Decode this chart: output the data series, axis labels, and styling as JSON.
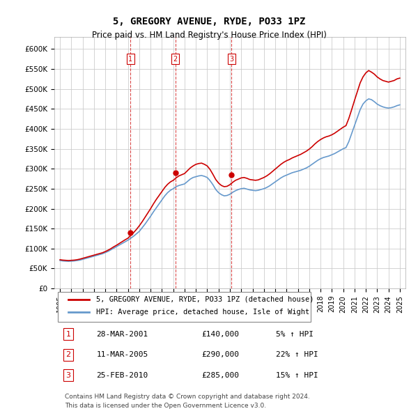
{
  "title": "5, GREGORY AVENUE, RYDE, PO33 1PZ",
  "subtitle": "Price paid vs. HM Land Registry's House Price Index (HPI)",
  "ylabel": "",
  "xlabel": "",
  "ylim": [
    0,
    630000
  ],
  "yticks": [
    0,
    50000,
    100000,
    150000,
    200000,
    250000,
    300000,
    350000,
    400000,
    450000,
    500000,
    550000,
    600000
  ],
  "ytick_labels": [
    "£0",
    "£50K",
    "£100K",
    "£150K",
    "£200K",
    "£250K",
    "£300K",
    "£350K",
    "£400K",
    "£450K",
    "£500K",
    "£550K",
    "£600K"
  ],
  "xlim": [
    1994.5,
    2025.5
  ],
  "legend_line1": "5, GREGORY AVENUE, RYDE, PO33 1PZ (detached house)",
  "legend_line2": "HPI: Average price, detached house, Isle of Wight",
  "sales": [
    {
      "label": "1",
      "date": "28-MAR-2001",
      "price": 140000,
      "pct": "5%",
      "direction": "↑",
      "year": 2001.22
    },
    {
      "label": "2",
      "date": "11-MAR-2005",
      "price": 290000,
      "pct": "22%",
      "direction": "↑",
      "year": 2005.19
    },
    {
      "label": "3",
      "date": "25-FEB-2010",
      "price": 285000,
      "pct": "15%",
      "direction": "↑",
      "year": 2010.14
    }
  ],
  "footnote1": "Contains HM Land Registry data © Crown copyright and database right 2024.",
  "footnote2": "This data is licensed under the Open Government Licence v3.0.",
  "red_color": "#cc0000",
  "blue_color": "#6699cc",
  "grid_color": "#cccccc",
  "background_color": "#ffffff",
  "hpi_data_x": [
    1995.0,
    1995.25,
    1995.5,
    1995.75,
    1996.0,
    1996.25,
    1996.5,
    1996.75,
    1997.0,
    1997.25,
    1997.5,
    1997.75,
    1998.0,
    1998.25,
    1998.5,
    1998.75,
    1999.0,
    1999.25,
    1999.5,
    1999.75,
    2000.0,
    2000.25,
    2000.5,
    2000.75,
    2001.0,
    2001.25,
    2001.5,
    2001.75,
    2002.0,
    2002.25,
    2002.5,
    2002.75,
    2003.0,
    2003.25,
    2003.5,
    2003.75,
    2004.0,
    2004.25,
    2004.5,
    2004.75,
    2005.0,
    2005.25,
    2005.5,
    2005.75,
    2006.0,
    2006.25,
    2006.5,
    2006.75,
    2007.0,
    2007.25,
    2007.5,
    2007.75,
    2008.0,
    2008.25,
    2008.5,
    2008.75,
    2009.0,
    2009.25,
    2009.5,
    2009.75,
    2010.0,
    2010.25,
    2010.5,
    2010.75,
    2011.0,
    2011.25,
    2011.5,
    2011.75,
    2012.0,
    2012.25,
    2012.5,
    2012.75,
    2013.0,
    2013.25,
    2013.5,
    2013.75,
    2014.0,
    2014.25,
    2014.5,
    2014.75,
    2015.0,
    2015.25,
    2015.5,
    2015.75,
    2016.0,
    2016.25,
    2016.5,
    2016.75,
    2017.0,
    2017.25,
    2017.5,
    2017.75,
    2018.0,
    2018.25,
    2018.5,
    2018.75,
    2019.0,
    2019.25,
    2019.5,
    2019.75,
    2020.0,
    2020.25,
    2020.5,
    2020.75,
    2021.0,
    2021.25,
    2021.5,
    2021.75,
    2022.0,
    2022.25,
    2022.5,
    2022.75,
    2023.0,
    2023.25,
    2023.5,
    2023.75,
    2024.0,
    2024.25,
    2024.5,
    2024.75,
    2025.0
  ],
  "hpi_data_y": [
    70000,
    69000,
    68500,
    68000,
    68500,
    69000,
    70000,
    71000,
    73000,
    75000,
    77000,
    79000,
    81000,
    83000,
    85000,
    87000,
    90000,
    93000,
    97000,
    101000,
    105000,
    109000,
    113000,
    117000,
    121000,
    126000,
    131000,
    137000,
    143000,
    152000,
    161000,
    171000,
    181000,
    192000,
    202000,
    212000,
    222000,
    232000,
    240000,
    246000,
    250000,
    255000,
    258000,
    260000,
    262000,
    268000,
    274000,
    278000,
    280000,
    282000,
    283000,
    281000,
    278000,
    270000,
    260000,
    248000,
    240000,
    235000,
    232000,
    233000,
    236000,
    241000,
    245000,
    248000,
    250000,
    251000,
    249000,
    247000,
    246000,
    245000,
    246000,
    248000,
    250000,
    253000,
    257000,
    262000,
    267000,
    272000,
    277000,
    281000,
    284000,
    287000,
    290000,
    292000,
    294000,
    296000,
    299000,
    302000,
    306000,
    311000,
    316000,
    321000,
    325000,
    328000,
    330000,
    332000,
    335000,
    338000,
    342000,
    346000,
    350000,
    353000,
    368000,
    388000,
    408000,
    428000,
    448000,
    462000,
    470000,
    475000,
    473000,
    468000,
    462000,
    458000,
    455000,
    453000,
    452000,
    453000,
    455000,
    458000,
    460000
  ],
  "red_data_x": [
    1995.0,
    1995.25,
    1995.5,
    1995.75,
    1996.0,
    1996.25,
    1996.5,
    1996.75,
    1997.0,
    1997.25,
    1997.5,
    1997.75,
    1998.0,
    1998.25,
    1998.5,
    1998.75,
    1999.0,
    1999.25,
    1999.5,
    1999.75,
    2000.0,
    2000.25,
    2000.5,
    2000.75,
    2001.0,
    2001.25,
    2001.5,
    2001.75,
    2002.0,
    2002.25,
    2002.5,
    2002.75,
    2003.0,
    2003.25,
    2003.5,
    2003.75,
    2004.0,
    2004.25,
    2004.5,
    2004.75,
    2005.0,
    2005.25,
    2005.5,
    2005.75,
    2006.0,
    2006.25,
    2006.5,
    2006.75,
    2007.0,
    2007.25,
    2007.5,
    2007.75,
    2008.0,
    2008.25,
    2008.5,
    2008.75,
    2009.0,
    2009.25,
    2009.5,
    2009.75,
    2010.0,
    2010.25,
    2010.5,
    2010.75,
    2011.0,
    2011.25,
    2011.5,
    2011.75,
    2012.0,
    2012.25,
    2012.5,
    2012.75,
    2013.0,
    2013.25,
    2013.5,
    2013.75,
    2014.0,
    2014.25,
    2014.5,
    2014.75,
    2015.0,
    2015.25,
    2015.5,
    2015.75,
    2016.0,
    2016.25,
    2016.5,
    2016.75,
    2017.0,
    2017.25,
    2017.5,
    2017.75,
    2018.0,
    2018.25,
    2018.5,
    2018.75,
    2019.0,
    2019.25,
    2019.5,
    2019.75,
    2020.0,
    2020.25,
    2020.5,
    2020.75,
    2021.0,
    2021.25,
    2021.5,
    2021.75,
    2022.0,
    2022.25,
    2022.5,
    2022.75,
    2023.0,
    2023.25,
    2023.5,
    2023.75,
    2024.0,
    2024.25,
    2024.5,
    2024.75,
    2025.0
  ],
  "red_data_y": [
    72000,
    71000,
    70500,
    70000,
    70500,
    71000,
    72000,
    73500,
    75500,
    77500,
    79500,
    81500,
    83500,
    85500,
    87500,
    89500,
    92500,
    96000,
    100000,
    104500,
    108500,
    113000,
    117500,
    122000,
    126000,
    133000,
    140000,
    148000,
    157000,
    167000,
    178000,
    189000,
    200000,
    212000,
    223000,
    233000,
    243000,
    253000,
    261000,
    267000,
    271000,
    277000,
    282000,
    285000,
    288000,
    295000,
    302000,
    307000,
    311000,
    313000,
    314000,
    311000,
    307000,
    298000,
    286000,
    273000,
    264000,
    258000,
    255000,
    256000,
    260000,
    266000,
    271000,
    274000,
    277000,
    278000,
    276000,
    273000,
    272000,
    271000,
    272000,
    275000,
    278000,
    282000,
    287000,
    293000,
    299000,
    305000,
    311000,
    316000,
    320000,
    323000,
    327000,
    330000,
    333000,
    336000,
    340000,
    344000,
    349000,
    355000,
    362000,
    368000,
    373000,
    377000,
    380000,
    382000,
    385000,
    389000,
    394000,
    399000,
    404000,
    408000,
    426000,
    448000,
    471000,
    493000,
    515000,
    530000,
    540000,
    546000,
    542000,
    537000,
    530000,
    525000,
    521000,
    519000,
    517000,
    519000,
    521000,
    525000,
    527000
  ]
}
